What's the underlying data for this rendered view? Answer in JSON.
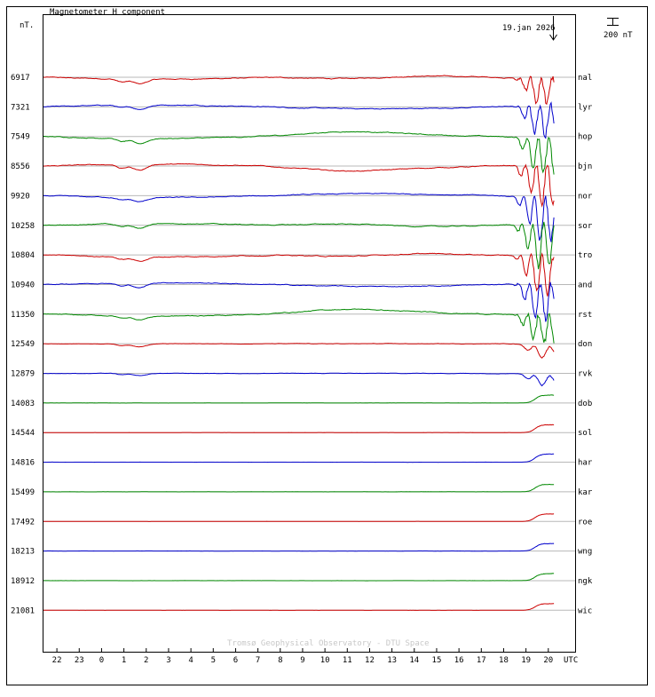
{
  "chart_data": {
    "type": "line",
    "title": "Magnetometer H component",
    "ylabel": "nT.",
    "xlabel": "UTC",
    "date_label": "19.jan 2026",
    "scale_label": "200 nT",
    "scale_nT": 200,
    "credit": "Tromsø Geophysical Observatory - DTU Space",
    "x_ticks": [
      "22",
      "23",
      "0",
      "1",
      "2",
      "3",
      "4",
      "5",
      "6",
      "7",
      "8",
      "9",
      "10",
      "11",
      "12",
      "13",
      "14",
      "15",
      "16",
      "17",
      "18",
      "19",
      "20"
    ],
    "x_range_hours": [
      -2.6,
      21.2
    ],
    "marker_hour": 20,
    "grid": "horizontal",
    "series": [
      {
        "name": "nal",
        "baseline": 6917,
        "color": "#cc0000",
        "kind": "high_lat",
        "excursion_nT": -330,
        "dip_nT": -60
      },
      {
        "name": "lyr",
        "baseline": 7321,
        "color": "#0000cc",
        "kind": "high_lat",
        "excursion_nT": -380,
        "dip_nT": -55
      },
      {
        "name": "hop",
        "baseline": 7549,
        "color": "#008800",
        "kind": "high_lat",
        "excursion_nT": -460,
        "dip_nT": -70
      },
      {
        "name": "bjn",
        "baseline": 8556,
        "color": "#cc0000",
        "kind": "high_lat",
        "excursion_nT": -520,
        "dip_nT": -75
      },
      {
        "name": "nor",
        "baseline": 9920,
        "color": "#0000cc",
        "kind": "high_lat",
        "excursion_nT": -560,
        "dip_nT": -55
      },
      {
        "name": "sor",
        "baseline": 10258,
        "color": "#008800",
        "kind": "high_lat",
        "excursion_nT": -540,
        "dip_nT": -65
      },
      {
        "name": "tro",
        "baseline": 10804,
        "color": "#cc0000",
        "kind": "high_lat",
        "excursion_nT": -480,
        "dip_nT": -55
      },
      {
        "name": "and",
        "baseline": 10940,
        "color": "#0000cc",
        "kind": "high_lat",
        "excursion_nT": -460,
        "dip_nT": -65
      },
      {
        "name": "rst",
        "baseline": 11350,
        "color": "#008800",
        "kind": "high_lat",
        "excursion_nT": -360,
        "dip_nT": -45
      },
      {
        "name": "don",
        "baseline": 12549,
        "color": "#cc0000",
        "kind": "mid_lat",
        "excursion_nT": -180,
        "dip_nT": -35
      },
      {
        "name": "rvk",
        "baseline": 12879,
        "color": "#0000cc",
        "kind": "mid_lat",
        "excursion_nT": -150,
        "dip_nT": -30
      },
      {
        "name": "dob",
        "baseline": 14083,
        "color": "#008800",
        "kind": "low_lat",
        "excursion_nT": 100,
        "dip_nT": 0
      },
      {
        "name": "sol",
        "baseline": 14544,
        "color": "#cc0000",
        "kind": "low_lat",
        "excursion_nT": 100,
        "dip_nT": 0
      },
      {
        "name": "har",
        "baseline": 14816,
        "color": "#0000cc",
        "kind": "low_lat",
        "excursion_nT": 105,
        "dip_nT": 0
      },
      {
        "name": "kar",
        "baseline": 15499,
        "color": "#008800",
        "kind": "low_lat",
        "excursion_nT": 95,
        "dip_nT": 0
      },
      {
        "name": "roe",
        "baseline": 17492,
        "color": "#cc0000",
        "kind": "low_lat",
        "excursion_nT": 95,
        "dip_nT": 0
      },
      {
        "name": "wng",
        "baseline": 18213,
        "color": "#0000cc",
        "kind": "low_lat",
        "excursion_nT": 95,
        "dip_nT": 0
      },
      {
        "name": "ngk",
        "baseline": 18912,
        "color": "#008800",
        "kind": "low_lat",
        "excursion_nT": 90,
        "dip_nT": 0
      },
      {
        "name": "wic",
        "baseline": 21081,
        "color": "#cc0000",
        "kind": "low_lat",
        "excursion_nT": 85,
        "dip_nT": 0
      }
    ]
  }
}
